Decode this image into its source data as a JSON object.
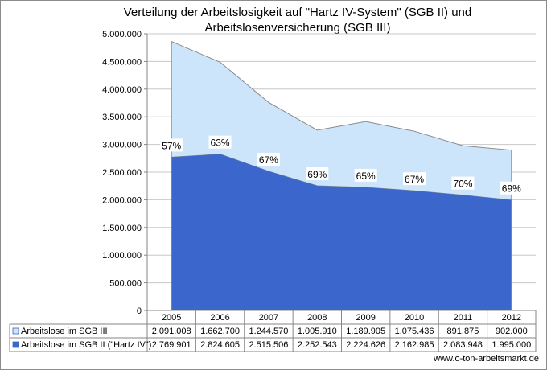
{
  "chart_data": {
    "type": "area",
    "stacked": true,
    "title": "Verteilung der Arbeitslosigkeit auf \"Hartz IV-System\" (SGB II) und Arbeitslosenversicherung (SGB III)",
    "title_lines": [
      "Verteilung der Arbeitslosigkeit auf \"Hartz IV-System\" (SGB II) und",
      "Arbeitslosenversicherung (SGB III)"
    ],
    "categories": [
      "2005",
      "2006",
      "2007",
      "2008",
      "2009",
      "2010",
      "2011",
      "2012"
    ],
    "series": [
      {
        "name": "Arbeitslose im SGB III",
        "values": [
          2091008,
          1662700,
          1244570,
          1005910,
          1189905,
          1075436,
          891875,
          902000
        ],
        "table_values": [
          "2.091.008",
          "1.662.700",
          "1.244.570",
          "1.005.910",
          "1.189.905",
          "1.075.436",
          "891.875",
          "902.000"
        ],
        "color": "#cde5fb"
      },
      {
        "name": "Arbeitslose im SGB II (\"Hartz IV\")",
        "values": [
          2769901,
          2824605,
          2515506,
          2252543,
          2224626,
          2162985,
          2083948,
          1995000
        ],
        "table_values": [
          "2.769.901",
          "2.824.605",
          "2.515.506",
          "2.252.543",
          "2.224.626",
          "2.162.985",
          "2.083.948",
          "1.995.000"
        ],
        "color": "#3b67cd"
      }
    ],
    "point_labels": [
      "57%",
      "63%",
      "67%",
      "69%",
      "65%",
      "67%",
      "70%",
      "69%"
    ],
    "y_ticks": [
      "0",
      "500.000",
      "1.000.000",
      "1.500.000",
      "2.000.000",
      "2.500.000",
      "3.000.000",
      "3.500.000",
      "4.000.000",
      "4.500.000",
      "5.000.000"
    ],
    "ylim": [
      0,
      5000000
    ],
    "grid": true,
    "legend": "data table below chart"
  },
  "footer": "www.o-ton-arbeitsmarkt.de"
}
